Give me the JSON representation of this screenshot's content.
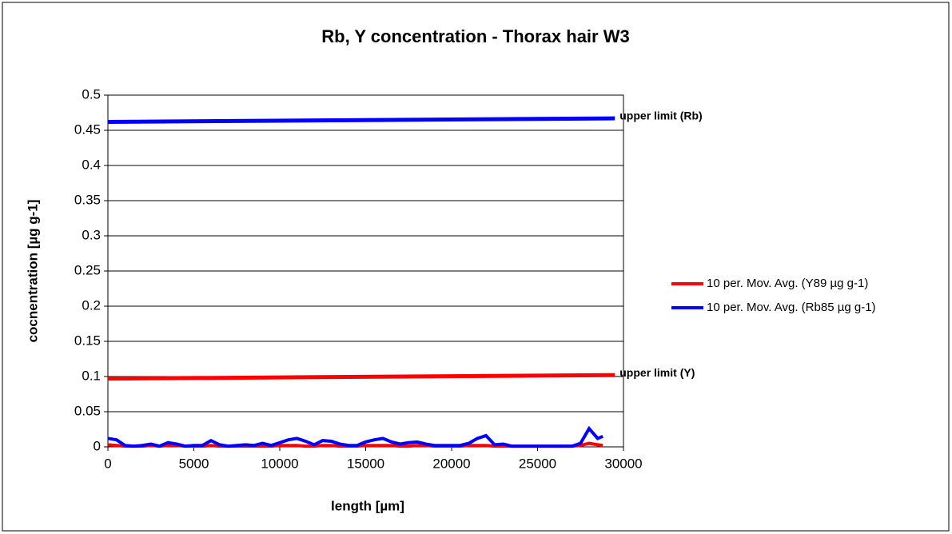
{
  "chart_data": {
    "type": "line",
    "title": "Rb, Y concentration - Thorax hair W3",
    "xlabel": "length [µm]",
    "ylabel": "cocnentration [µg g-1]",
    "x": [
      0,
      500,
      1000,
      1500,
      2000,
      2500,
      3000,
      3500,
      4000,
      4500,
      5000,
      5500,
      6000,
      6500,
      7000,
      7500,
      8000,
      8500,
      9000,
      9500,
      10000,
      10500,
      11000,
      11500,
      12000,
      12500,
      13000,
      13500,
      14000,
      14500,
      15000,
      15500,
      16000,
      16500,
      17000,
      17500,
      18000,
      18500,
      19000,
      19500,
      20000,
      20500,
      21000,
      21500,
      22000,
      22500,
      23000,
      23500,
      24000,
      24500,
      25000,
      25500,
      26000,
      26500,
      27000,
      27500,
      28000,
      28500,
      28800
    ],
    "series": [
      {
        "name": "10 per. Mov. Avg. (Y89 µg g-1)",
        "color": "#ff0000",
        "values": [
          0.003,
          0.002,
          0.001,
          0.001,
          0.001,
          0.002,
          0.001,
          0.002,
          0.002,
          0.001,
          0.001,
          0.001,
          0.002,
          0.001,
          0.001,
          0.001,
          0.001,
          0.001,
          0.001,
          0.001,
          0.002,
          0.002,
          0.002,
          0.001,
          0.001,
          0.002,
          0.002,
          0.001,
          0.001,
          0.001,
          0.002,
          0.002,
          0.002,
          0.002,
          0.001,
          0.001,
          0.002,
          0.002,
          0.001,
          0.001,
          0.001,
          0.001,
          0.002,
          0.002,
          0.002,
          0.001,
          0.001,
          0.001,
          0.001,
          0.001,
          0.001,
          0.001,
          0.001,
          0.001,
          0.001,
          0.002,
          0.005,
          0.003,
          0.002
        ]
      },
      {
        "name": "10 per. Mov. Avg. (Rb85 µg g-1)",
        "color": "#0000ff",
        "values": [
          0.012,
          0.01,
          0.002,
          0.001,
          0.002,
          0.004,
          0.001,
          0.006,
          0.004,
          0.001,
          0.002,
          0.002,
          0.009,
          0.003,
          0.001,
          0.002,
          0.003,
          0.002,
          0.005,
          0.002,
          0.006,
          0.01,
          0.012,
          0.008,
          0.003,
          0.009,
          0.008,
          0.004,
          0.002,
          0.002,
          0.007,
          0.01,
          0.012,
          0.007,
          0.004,
          0.006,
          0.007,
          0.004,
          0.002,
          0.002,
          0.002,
          0.002,
          0.005,
          0.012,
          0.016,
          0.003,
          0.004,
          0.001,
          0.001,
          0.001,
          0.001,
          0.001,
          0.001,
          0.001,
          0.001,
          0.005,
          0.026,
          0.012,
          0.015
        ]
      }
    ],
    "annotations": [
      {
        "label": "upper limit (Rb)",
        "color": "#0000ff",
        "x": [
          0,
          29500
        ],
        "y": [
          0.462,
          0.467
        ]
      },
      {
        "label": "upper limit (Y)",
        "color": "#ff0000",
        "x": [
          0,
          29500
        ],
        "y": [
          0.097,
          0.102
        ]
      }
    ],
    "xlim": [
      0,
      30000
    ],
    "xticks": [
      0,
      5000,
      10000,
      15000,
      20000,
      25000,
      30000
    ],
    "ylim": [
      0,
      0.5
    ],
    "yticks": [
      0,
      0.05,
      0.1,
      0.15,
      0.2,
      0.25,
      0.3,
      0.35,
      0.4,
      0.45,
      0.5
    ],
    "grid": true,
    "legend": "right"
  }
}
